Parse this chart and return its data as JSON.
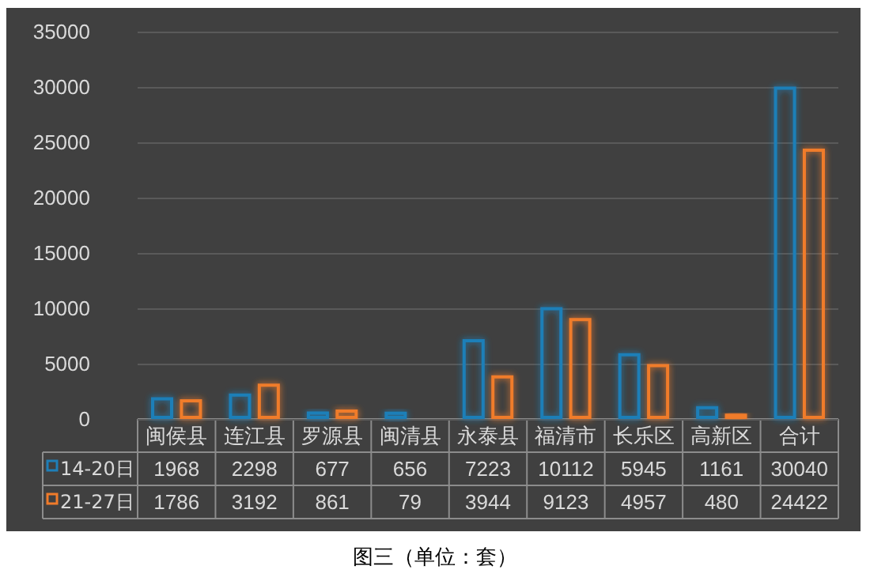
{
  "chart_data": {
    "type": "bar",
    "categories": [
      "闽侯县",
      "连江县",
      "罗源县",
      "闽清县",
      "永泰县",
      "福清市",
      "长乐区",
      "高新区",
      "合计"
    ],
    "series": [
      {
        "name": "14-20日",
        "color": "#1f7fb8",
        "values": [
          1968,
          2298,
          677,
          656,
          7223,
          10112,
          5945,
          1161,
          30040
        ]
      },
      {
        "name": "21-27日",
        "color": "#f07b2a",
        "values": [
          1786,
          3192,
          861,
          79,
          3944,
          9123,
          4957,
          480,
          24422
        ]
      }
    ],
    "ylim": [
      0,
      35000
    ],
    "yticks": [
      0,
      5000,
      10000,
      15000,
      20000,
      25000,
      30000,
      35000
    ],
    "grid": "y",
    "legend": "bottom",
    "data_labels": true,
    "annotations": [
      "图三（单位：套）"
    ]
  }
}
